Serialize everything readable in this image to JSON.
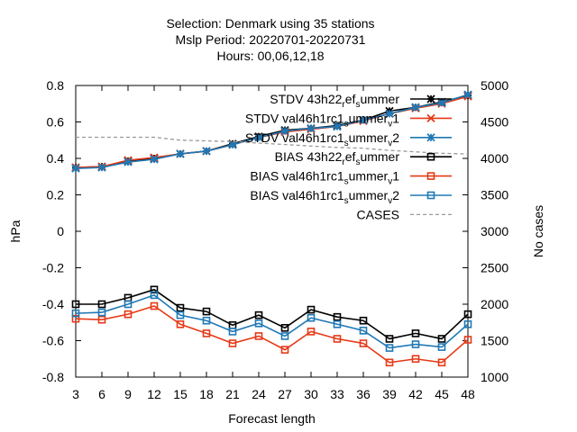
{
  "chart_data": {
    "type": "line",
    "title_lines": [
      "Selection: Denmark using    35 stations",
      "Mslp   Period: 20220701-20220731",
      "Hours:  00,06,12,18"
    ],
    "xlabel": "Forecast length",
    "ylabel": "hPa",
    "y2label": "No cases",
    "xlim": [
      3,
      48
    ],
    "ylim": [
      -0.8,
      0.8
    ],
    "y2lim": [
      1000,
      5000
    ],
    "x_ticks": [
      3,
      6,
      9,
      12,
      15,
      18,
      21,
      24,
      27,
      30,
      33,
      36,
      39,
      42,
      45,
      48
    ],
    "y_ticks": [
      "-0.8",
      "-0.6",
      "-0.4",
      "-0.2",
      "0",
      "0.2",
      "0.4",
      "0.6",
      "0.8"
    ],
    "y2_ticks": [
      "1000",
      "1500",
      "2000",
      "2500",
      "3000",
      "3500",
      "4000",
      "4500",
      "5000"
    ],
    "grid": false,
    "legend_position": "top-right",
    "x": [
      3,
      6,
      9,
      12,
      15,
      18,
      21,
      24,
      27,
      30,
      33,
      36,
      39,
      42,
      45,
      48
    ],
    "series": [
      {
        "legend_main": "STDV 43h22",
        "legend_parts": [
          [
            "_",
            "r"
          ],
          [
            "",
            "ef"
          ],
          [
            "_",
            "s"
          ],
          [
            "",
            "ummer"
          ]
        ],
        "color": "#000000",
        "marker": "star",
        "dash": false,
        "axis": "y1",
        "values": [
          0.35,
          0.355,
          0.385,
          0.4,
          0.425,
          0.44,
          0.48,
          0.52,
          0.555,
          0.565,
          0.58,
          0.61,
          0.66,
          0.68,
          0.71,
          0.745
        ]
      },
      {
        "legend_main": "STDV val46h1rc1",
        "legend_parts": [
          [
            "_",
            "s"
          ],
          [
            "",
            "ummer"
          ],
          [
            "_",
            "v"
          ],
          [
            "",
            "1"
          ]
        ],
        "color": "#e53a17",
        "marker": "x",
        "dash": false,
        "axis": "y1",
        "values": [
          0.35,
          0.355,
          0.39,
          0.405,
          0.425,
          0.44,
          0.475,
          0.515,
          0.545,
          0.56,
          0.575,
          0.605,
          0.645,
          0.675,
          0.7,
          0.74
        ]
      },
      {
        "legend_main": "STDV val46h1rc1",
        "legend_parts": [
          [
            "_",
            "s"
          ],
          [
            "",
            "ummer"
          ],
          [
            "_",
            "v"
          ],
          [
            "",
            "2"
          ]
        ],
        "color": "#1f78b4",
        "marker": "star",
        "dash": false,
        "axis": "y1",
        "values": [
          0.345,
          0.35,
          0.38,
          0.395,
          0.425,
          0.44,
          0.475,
          0.515,
          0.55,
          0.565,
          0.575,
          0.61,
          0.645,
          0.68,
          0.705,
          0.75
        ]
      },
      {
        "legend_main": "BIAS 43h22",
        "legend_parts": [
          [
            "_",
            "r"
          ],
          [
            "",
            "ef"
          ],
          [
            "_",
            "s"
          ],
          [
            "",
            "ummer"
          ]
        ],
        "color": "#000000",
        "marker": "square",
        "dash": false,
        "axis": "y1",
        "values": [
          -0.4,
          -0.4,
          -0.365,
          -0.32,
          -0.42,
          -0.44,
          -0.515,
          -0.46,
          -0.53,
          -0.43,
          -0.47,
          -0.49,
          -0.59,
          -0.56,
          -0.59,
          -0.455
        ]
      },
      {
        "legend_main": "BIAS val46h1rc1",
        "legend_parts": [
          [
            "_",
            "s"
          ],
          [
            "",
            "ummer"
          ],
          [
            "_",
            "v"
          ],
          [
            "",
            "1"
          ]
        ],
        "color": "#e53a17",
        "marker": "square",
        "dash": false,
        "axis": "y1",
        "values": [
          -0.48,
          -0.485,
          -0.455,
          -0.41,
          -0.51,
          -0.56,
          -0.615,
          -0.575,
          -0.65,
          -0.55,
          -0.59,
          -0.615,
          -0.72,
          -0.7,
          -0.72,
          -0.595
        ]
      },
      {
        "legend_main": "BIAS val46h1rc1",
        "legend_parts": [
          [
            "_",
            "s"
          ],
          [
            "",
            "ummer"
          ],
          [
            "_",
            "v"
          ],
          [
            "",
            "2"
          ]
        ],
        "color": "#1f78b4",
        "marker": "square",
        "dash": false,
        "axis": "y1",
        "values": [
          -0.45,
          -0.445,
          -0.4,
          -0.35,
          -0.46,
          -0.49,
          -0.55,
          -0.505,
          -0.575,
          -0.475,
          -0.51,
          -0.545,
          -0.64,
          -0.62,
          -0.635,
          -0.51
        ]
      },
      {
        "legend_main": "CASES",
        "legend_parts": [],
        "color": "#999999",
        "marker": "none",
        "dash": true,
        "axis": "y2",
        "values": [
          4290,
          4290,
          4290,
          4290,
          4250,
          4240,
          4230,
          4210,
          4190,
          4170,
          4150,
          4140,
          4110,
          4090,
          4070,
          4060
        ]
      }
    ]
  }
}
